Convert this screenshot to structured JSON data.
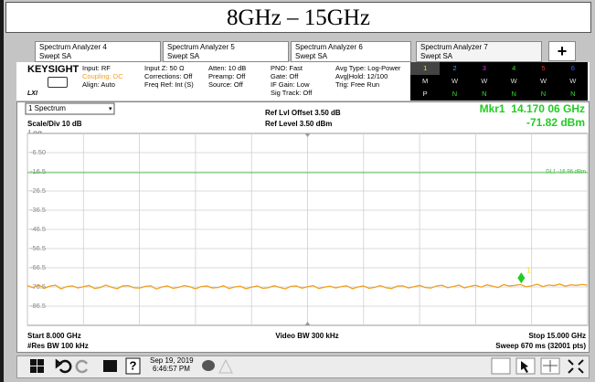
{
  "header": {
    "title": "8GHz – 15GHz"
  },
  "tabs": [
    {
      "name": "Spectrum Analyzer 4",
      "mode": "Swept SA"
    },
    {
      "name": "Spectrum Analyzer 5",
      "mode": "Swept SA"
    },
    {
      "name": "Spectrum Analyzer 6",
      "mode": "Swept SA"
    },
    {
      "name": "Spectrum Analyzer 7",
      "mode": "Swept SA"
    }
  ],
  "info": {
    "brand": "KEYSIGHT",
    "lxi": "LXI",
    "columns": [
      [
        "Input: RF",
        "Coupling: DC",
        "Align: Auto"
      ],
      [
        "Input Z: 50 Ω",
        "Corrections: Off",
        "Freq Ref: Int (S)"
      ],
      [
        "Atten: 10 dB",
        "Preamp: Off",
        "Source: Off"
      ],
      [
        "PNO: Fast",
        "Gate: Off",
        "IF Gain: Low",
        "Sig Track: Off"
      ],
      [
        "Avg Type: Log-Power",
        "Avg|Hold: 12/100",
        "Trig: Free Run"
      ]
    ]
  },
  "traces": {
    "numbers": [
      "1",
      "2",
      "3",
      "4",
      "5",
      "6"
    ],
    "types": [
      "M",
      "W",
      "W",
      "W",
      "W",
      "W"
    ],
    "detectors": [
      "P",
      "N",
      "N",
      "N",
      "N",
      "N"
    ]
  },
  "chart_data": {
    "type": "line",
    "window": "1 Spectrum",
    "scale": "Scale/Div 10 dB",
    "scale_type": "Log",
    "ref_offset": "Ref Lvl Offset 3.50 dB",
    "ref_level": "Ref Level 3.50 dBm",
    "marker_freq": "Mkr1  14.170 06 GHz",
    "marker_level": "-71.82 dBm",
    "start": "Start 8.000 GHz",
    "res_bw": "#Res BW 100 kHz",
    "video_bw": "Video BW 300 kHz",
    "stop": "Stop 15.000 GHz",
    "sweep": "Sweep 670 ms (32001 pts)",
    "xlim": [
      8,
      15
    ],
    "ylim": [
      -96.5,
      3.5
    ],
    "xticks": [
      8,
      8.7,
      9.4,
      10.1,
      10.8,
      11.5,
      12.2,
      12.9,
      13.6,
      14.3,
      15
    ],
    "yticks": [
      {
        "value": -6.5,
        "label": "-6.50"
      },
      -16.5,
      -26.5,
      -36.5,
      -46.5,
      -56.5,
      -66.5,
      -76.5,
      -86.5
    ],
    "grid": true,
    "display_line": {
      "value": -16.96,
      "label": "DL1 -16.96 dBm",
      "color": "#33bb33"
    },
    "marker": {
      "x": 14.17006,
      "y": -71.82,
      "label": "1",
      "color": "#22cc22"
    },
    "series": [
      {
        "name": "Trace 1",
        "color": "#f0a020",
        "x": [
          8,
          8.07,
          8.14,
          8.21,
          8.28,
          8.35,
          8.42,
          8.49,
          8.56,
          8.63,
          8.7,
          8.77,
          8.84,
          8.91,
          8.98,
          9.05,
          9.12,
          9.19,
          9.26,
          9.33,
          9.4,
          9.47,
          9.54,
          9.61,
          9.68,
          9.75,
          9.82,
          9.89,
          9.96,
          10.03,
          10.1,
          10.17,
          10.24,
          10.31,
          10.38,
          10.45,
          10.52,
          10.59,
          10.66,
          10.73,
          10.8,
          10.87,
          10.94,
          11.01,
          11.08,
          11.15,
          11.22,
          11.29,
          11.36,
          11.43,
          11.5,
          11.57,
          11.64,
          11.71,
          11.78,
          11.85,
          11.92,
          11.99,
          12.06,
          12.13,
          12.2,
          12.27,
          12.34,
          12.41,
          12.48,
          12.55,
          12.62,
          12.69,
          12.76,
          12.83,
          12.9,
          12.97,
          13.04,
          13.11,
          13.18,
          13.25,
          13.32,
          13.39,
          13.46,
          13.53,
          13.6,
          13.67,
          13.74,
          13.81,
          13.88,
          13.95,
          14.02,
          14.09,
          14.16,
          14.23,
          14.3,
          14.37,
          14.44,
          14.51,
          14.58,
          14.65,
          14.72,
          14.79,
          14.86,
          14.93,
          15
        ],
        "values": [
          -75.8,
          -76.9,
          -75.4,
          -77.2,
          -76.1,
          -75.6,
          -77.5,
          -76.3,
          -75.9,
          -77.0,
          -76.4,
          -75.7,
          -77.3,
          -76.8,
          -75.5,
          -76.6,
          -77.4,
          -76.0,
          -75.8,
          -76.9,
          -77.1,
          -76.2,
          -75.9,
          -77.6,
          -76.5,
          -76.0,
          -77.2,
          -76.7,
          -75.8,
          -76.4,
          -77.5,
          -76.3,
          -76.0,
          -77.0,
          -76.8,
          -75.9,
          -77.3,
          -76.5,
          -76.1,
          -77.4,
          -76.6,
          -76.0,
          -77.2,
          -76.9,
          -75.9,
          -76.7,
          -77.5,
          -76.2,
          -76.0,
          -77.1,
          -76.4,
          -75.8,
          -77.3,
          -76.6,
          -76.1,
          -77.0,
          -76.3,
          -75.9,
          -77.4,
          -76.5,
          -76.0,
          -77.2,
          -76.7,
          -75.8,
          -76.9,
          -77.3,
          -76.1,
          -75.9,
          -77.0,
          -76.4,
          -75.7,
          -76.8,
          -77.1,
          -76.0,
          -75.6,
          -76.9,
          -76.3,
          -75.5,
          -77.0,
          -76.2,
          -75.6,
          -76.6,
          -75.4,
          -76.1,
          -76.8,
          -75.3,
          -76.0,
          -75.7,
          -75.2,
          -76.4,
          -75.9,
          -75.1,
          -76.3,
          -75.5,
          -75.8,
          -75.0,
          -76.1,
          -75.4,
          -75.7,
          -75.2,
          -75.6
        ]
      }
    ]
  },
  "taskbar": {
    "date": "Sep 19, 2019",
    "time": "6:46:57 PM"
  }
}
